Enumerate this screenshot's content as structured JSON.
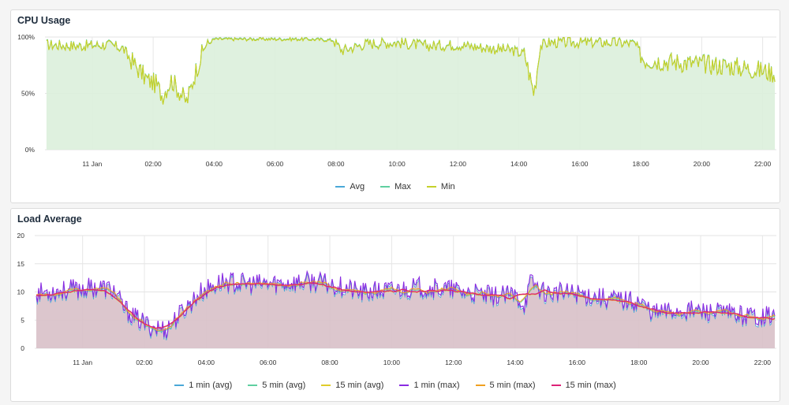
{
  "panels": {
    "cpu": {
      "title": "CPU Usage"
    },
    "load": {
      "title": "Load Average"
    }
  },
  "chart_data": [
    {
      "type": "line",
      "title": "CPU Usage",
      "x_unit": "hours from 00:00 11 Jan",
      "x_ticks": [
        "11 Jan",
        "02:00",
        "04:00",
        "06:00",
        "08:00",
        "10:00",
        "12:00",
        "14:00",
        "16:00",
        "18:00",
        "20:00",
        "22:00"
      ],
      "x_tick_hours": [
        0,
        2,
        4,
        6,
        8,
        10,
        12,
        14,
        16,
        18,
        20,
        22
      ],
      "xlim_hours": [
        -1.55,
        22.45
      ],
      "y_ticks": [
        "0%",
        "50%",
        "100%"
      ],
      "ylim": [
        0,
        100
      ],
      "grid": true,
      "legend_position": "bottom",
      "series": [
        {
          "name": "Avg",
          "color": "#4aa8d8"
        },
        {
          "name": "Max",
          "color": "#5fcfa0"
        },
        {
          "name": "Min",
          "color": "#c5d12a"
        }
      ],
      "fill_color": "#dcf0dc",
      "anchor_hours": [
        -1.5,
        -0.5,
        0.5,
        1.0,
        1.4,
        1.8,
        2.1,
        2.3,
        2.6,
        2.9,
        3.1,
        3.4,
        3.7,
        4.0,
        5.0,
        6.0,
        7.0,
        7.9,
        8.2,
        9.0,
        10.0,
        11.0,
        12.0,
        13.0,
        13.8,
        14.2,
        14.4,
        14.5,
        14.7,
        15.0,
        16.0,
        17.0,
        17.8,
        18.1,
        19.0,
        20.0,
        21.0,
        22.0,
        22.4
      ],
      "anchor_values": [
        93,
        92,
        93,
        90,
        75,
        62,
        58,
        48,
        62,
        50,
        42,
        70,
        92,
        98,
        98,
        98,
        98,
        97,
        88,
        94,
        95,
        92,
        93,
        90,
        88,
        84,
        60,
        50,
        92,
        95,
        95,
        95,
        94,
        80,
        78,
        76,
        74,
        70,
        68
      ]
    },
    {
      "type": "line",
      "title": "Load Average",
      "x_unit": "hours from 00:00 11 Jan",
      "x_ticks": [
        "11 Jan",
        "02:00",
        "04:00",
        "06:00",
        "08:00",
        "10:00",
        "12:00",
        "14:00",
        "16:00",
        "18:00",
        "20:00",
        "22:00"
      ],
      "x_tick_hours": [
        0,
        2,
        4,
        6,
        8,
        10,
        12,
        14,
        16,
        18,
        20,
        22
      ],
      "xlim_hours": [
        -1.55,
        22.45
      ],
      "y_ticks": [
        "0",
        "5",
        "10",
        "15",
        "20"
      ],
      "ylim": [
        0,
        20
      ],
      "grid": true,
      "legend_position": "bottom",
      "series": [
        {
          "name": "1 min (avg)",
          "color": "#4aa8d8"
        },
        {
          "name": "5 min (avg)",
          "color": "#5fcfa0"
        },
        {
          "name": "15 min (avg)",
          "color": "#e0cc2a"
        },
        {
          "name": "1 min (max)",
          "color": "#8a2be2"
        },
        {
          "name": "5 min (max)",
          "color": "#f0a020"
        },
        {
          "name": "15 min (max)",
          "color": "#dd2277"
        }
      ],
      "fill_color": "#d8c0c8",
      "anchor_hours": [
        -1.5,
        -0.5,
        0.5,
        1.0,
        1.3,
        1.7,
        2.2,
        2.7,
        3.2,
        3.8,
        4.5,
        5.5,
        6.5,
        7.5,
        8.5,
        9.0,
        10.0,
        11.0,
        12.0,
        13.0,
        14.0,
        14.3,
        14.5,
        15.0,
        16.0,
        17.0,
        18.0,
        18.5,
        19.5,
        20.5,
        21.5,
        22.4
      ],
      "anchor_values": [
        9.5,
        10.0,
        10.5,
        10.0,
        7.0,
        5.0,
        3.5,
        3.0,
        6.0,
        9.5,
        11.5,
        11.0,
        11.2,
        11.5,
        10.5,
        9.5,
        10.0,
        10.5,
        10.0,
        9.0,
        9.0,
        7.5,
        11.5,
        9.5,
        9.5,
        8.5,
        8.0,
        6.0,
        6.5,
        6.0,
        5.5,
        5.5
      ]
    }
  ]
}
